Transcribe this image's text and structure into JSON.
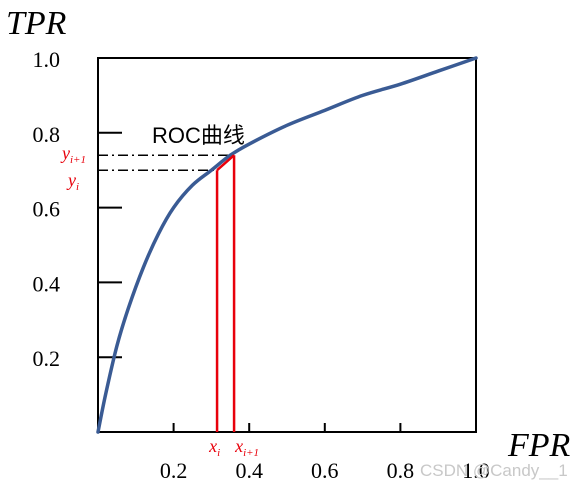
{
  "chart_data": {
    "type": "line",
    "ylabel": "TPR",
    "xlabel": "FPR",
    "xlim": [
      0,
      1
    ],
    "ylim": [
      0,
      1
    ],
    "x_ticks": [
      0.2,
      0.4,
      0.6,
      0.8,
      1.0
    ],
    "x_tick_labels": [
      "0.2",
      "0.4",
      "0.6",
      "0.8",
      "1.0"
    ],
    "y_ticks": [
      0.2,
      0.4,
      0.6,
      0.8,
      1.0
    ],
    "y_tick_labels": [
      "0.2",
      "0.4",
      "0.6",
      "0.8",
      "1.0"
    ],
    "grid": false,
    "series": [
      {
        "name": "ROC曲线",
        "color": "#3a5b94",
        "x": [
          0,
          0.02,
          0.05,
          0.08,
          0.12,
          0.16,
          0.2,
          0.25,
          0.3,
          0.35,
          0.4,
          0.5,
          0.6,
          0.7,
          0.8,
          0.9,
          1.0
        ],
        "y": [
          0,
          0.1,
          0.23,
          0.33,
          0.44,
          0.53,
          0.6,
          0.66,
          0.7,
          0.74,
          0.77,
          0.82,
          0.86,
          0.9,
          0.93,
          0.965,
          1.0
        ]
      }
    ],
    "annotations": {
      "curve_label": "ROC曲线",
      "x_i": {
        "base": "x",
        "sub": "i",
        "value": 0.315
      },
      "x_i1": {
        "base": "x",
        "sub": "i+1",
        "value": 0.36
      },
      "y_i": {
        "base": "y",
        "sub": "i",
        "value": 0.7
      },
      "y_i1": {
        "base": "y",
        "sub": "i+1",
        "value": 0.74
      },
      "highlight_color": "#e8000b"
    }
  },
  "watermark": "CSDN @Candy__1"
}
